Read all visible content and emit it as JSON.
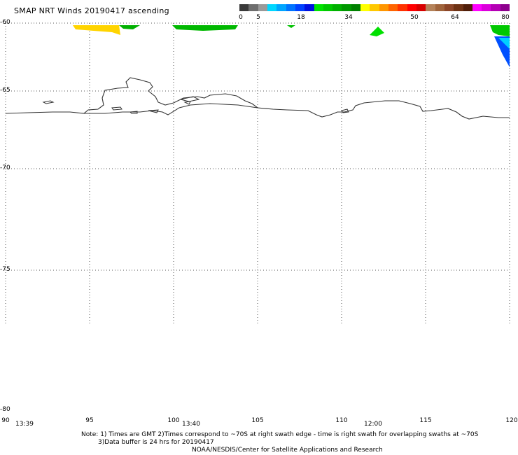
{
  "title": "SMAP NRT Winds 20190417 ascending",
  "colorbar": {
    "segments": [
      "#3a3a3a",
      "#6e6e6e",
      "#9a9a9a",
      "#00d7ff",
      "#00a5ff",
      "#0073ff",
      "#0041ff",
      "#0010e0",
      "#00e300",
      "#00c800",
      "#00b000",
      "#009800",
      "#008000",
      "#ffff00",
      "#ffc800",
      "#ff9600",
      "#ff6400",
      "#ff3200",
      "#ff0000",
      "#d80000",
      "#b4825a",
      "#a0643c",
      "#8c4628",
      "#6e3214",
      "#501e0a",
      "#ff00ff",
      "#dc00dc",
      "#b400b4",
      "#8c008c"
    ],
    "ticks": [
      "0",
      "5",
      "18",
      "34",
      "50",
      "64",
      "80"
    ]
  },
  "axes": {
    "lat_labels": [
      "-60",
      "-65",
      "-70",
      "-75",
      "-80"
    ],
    "lon_labels": [
      "90",
      "95",
      "100",
      "105",
      "110",
      "115",
      "120"
    ],
    "times": [
      "13:39",
      "13:40",
      "12:00"
    ]
  },
  "notes": {
    "line1": "Note: 1) Times are GMT 2)Times correspond to ~70S at right swath edge - time is right swath for overlapping swaths at ~70S",
    "line2": "3)Data buffer is 24 hrs for 20190417",
    "line3": "NOAA/NESDIS/Center for Satellite Applications and Research"
  }
}
